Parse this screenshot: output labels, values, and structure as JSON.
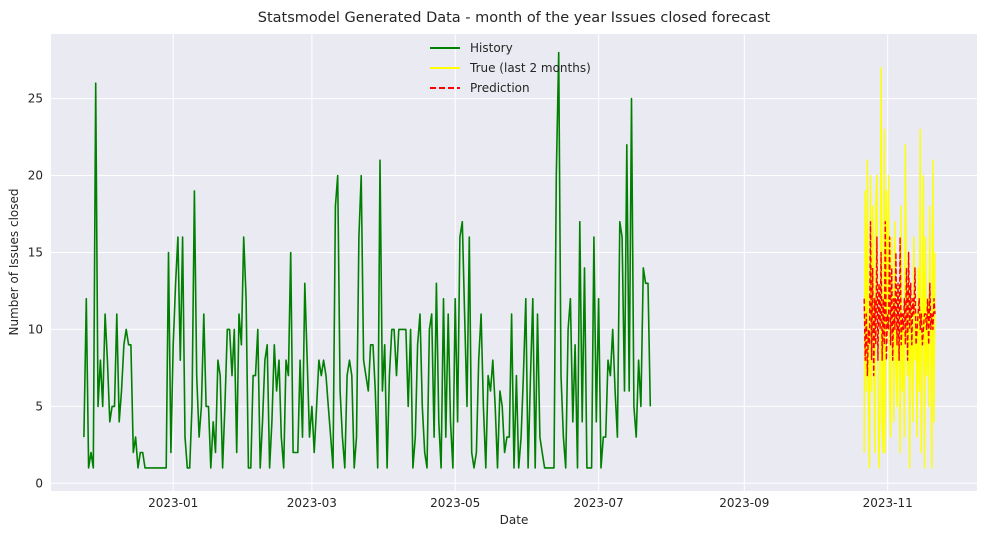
{
  "chart_data": {
    "type": "line",
    "title": "Statsmodel Generated Data - month of the year Issues closed forecast",
    "xlabel": "Date",
    "ylabel": "Number of Issues closed",
    "x_axis": "date",
    "xlim": [
      "2023-11-10",
      "2023-12-09"
    ],
    "ylim": [
      -0.5,
      29.2
    ],
    "x_ticks": [
      "2023-01",
      "2023-03",
      "2023-05",
      "2023-07",
      "2023-09",
      "2023-11"
    ],
    "y_ticks": [
      0,
      5,
      10,
      15,
      20,
      25
    ],
    "grid": true,
    "legend_position": "top-center",
    "series": [
      {
        "name": "History",
        "color": "#008000",
        "style": "solid",
        "start_date": "2022-11-24",
        "values": [
          3,
          12,
          1,
          2,
          1,
          26,
          5,
          8,
          5,
          11,
          8,
          4,
          5,
          5,
          11,
          4,
          6,
          9,
          10,
          9,
          9,
          2,
          3,
          1,
          2,
          2,
          1,
          1,
          1,
          1,
          1,
          1,
          1,
          1,
          1,
          1,
          15,
          2,
          9,
          13,
          16,
          8,
          16,
          3,
          1,
          1,
          5,
          19,
          7,
          3,
          5,
          11,
          5,
          5,
          1,
          4,
          2,
          8,
          7,
          1,
          5,
          10,
          10,
          7,
          10,
          2,
          11,
          9,
          16,
          12,
          1,
          1,
          7,
          7,
          10,
          1,
          4,
          8,
          9,
          1,
          4,
          9,
          6,
          8,
          3,
          1,
          8,
          7,
          15,
          2,
          2,
          2,
          8,
          3,
          13,
          8,
          3,
          5,
          2,
          5,
          8,
          7,
          8,
          7,
          5,
          3,
          1,
          18,
          20,
          6,
          3,
          1,
          7,
          8,
          7,
          1,
          3,
          16,
          20,
          8,
          7,
          6,
          9,
          9,
          6,
          1,
          21,
          6,
          9,
          1,
          7,
          10,
          10,
          7,
          10,
          10,
          10,
          10,
          5,
          10,
          1,
          3,
          9,
          11,
          5,
          2,
          1,
          10,
          11,
          3,
          13,
          4,
          1,
          12,
          3,
          11,
          4,
          1,
          12,
          4,
          16,
          17,
          11,
          5,
          16,
          2,
          1,
          2,
          8,
          11,
          5,
          1,
          7,
          6,
          8,
          5,
          1,
          6,
          5,
          2,
          3,
          3,
          11,
          1,
          7,
          1,
          3,
          7,
          12,
          1,
          7,
          12,
          1,
          11,
          3,
          2,
          1,
          1,
          1,
          1,
          1,
          20,
          28,
          7,
          3,
          1,
          10,
          12,
          4,
          9,
          1,
          17,
          4,
          14,
          1,
          1,
          1,
          16,
          4,
          12,
          1,
          3,
          3,
          8,
          7,
          10,
          6,
          3,
          17,
          16,
          6,
          22,
          6,
          25,
          5,
          3,
          8,
          5,
          14,
          13,
          13,
          5
        ]
      },
      {
        "name": "True (last 2 months)",
        "color": "#ffff00",
        "style": "solid",
        "start_date": "2023-10-22",
        "values": [
          2,
          19,
          6,
          21,
          6,
          1,
          20,
          6,
          18,
          10,
          2,
          18,
          20,
          8,
          1,
          5,
          27,
          4,
          2,
          23,
          2,
          19,
          10,
          20,
          6,
          3,
          16,
          12,
          4,
          17,
          8,
          5,
          13,
          9,
          2,
          18,
          6,
          10,
          3,
          22,
          11,
          7,
          15,
          1,
          12,
          9,
          4,
          16,
          8,
          11,
          3,
          14,
          6,
          23,
          2,
          10,
          20,
          1,
          16,
          7,
          12,
          5,
          18,
          9,
          1,
          21,
          4,
          15
        ]
      },
      {
        "name": "Prediction",
        "color": "#ff0000",
        "style": "dashed",
        "start_date": "2023-10-22",
        "values": [
          12,
          8,
          11,
          7,
          10,
          9,
          17,
          8,
          14,
          7,
          12,
          9,
          16,
          8,
          13,
          10,
          15,
          8,
          12,
          9,
          17,
          8,
          11,
          10,
          16,
          9,
          14,
          8,
          12,
          10,
          15,
          9,
          13,
          8,
          16,
          9,
          11,
          10,
          12,
          9,
          14,
          8,
          15,
          10,
          13,
          9,
          12,
          11,
          14,
          9,
          10,
          11,
          12,
          10,
          11,
          9,
          10,
          11,
          11,
          10,
          12,
          9,
          13,
          10,
          11,
          10,
          12,
          11
        ]
      }
    ]
  }
}
